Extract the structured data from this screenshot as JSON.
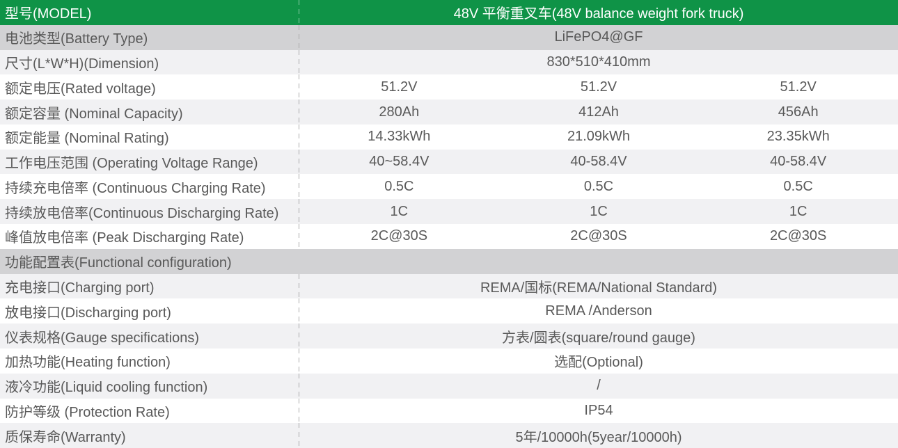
{
  "colors": {
    "header_green": "#0F9347",
    "header_text": "#FFFFFF",
    "section_gray": "#D2D2D4",
    "row_light": "#F1F1F3",
    "row_white": "#FFFFFF",
    "text": "#595959",
    "dash": "#A9A9A9",
    "dash_on_green": "rgba(255,255,255,0.55)"
  },
  "table": {
    "header": {
      "label": "型号(MODEL)",
      "value": "48V 平衡重叉车(48V balance weight fork truck)"
    },
    "rows": [
      {
        "type": "merged",
        "bg": "section",
        "label": "电池类型(Battery Type)",
        "value": "LiFePO4@GF"
      },
      {
        "type": "merged",
        "bg": "light",
        "label": "尺寸(L*W*H)(Dimension)",
        "value": "830*510*410mm"
      },
      {
        "type": "triple",
        "bg": "white",
        "label": "额定电压(Rated voltage)",
        "values": [
          "51.2V",
          "51.2V",
          "51.2V"
        ]
      },
      {
        "type": "triple",
        "bg": "light",
        "label": "额定容量 (Nominal Capacity)",
        "values": [
          "280Ah",
          "412Ah",
          "456Ah"
        ]
      },
      {
        "type": "triple",
        "bg": "white",
        "label": "额定能量 (Nominal Rating)",
        "values": [
          "14.33kWh",
          "21.09kWh",
          "23.35kWh"
        ]
      },
      {
        "type": "triple",
        "bg": "light",
        "label": "工作电压范围 (Operating Voltage Range)",
        "values": [
          "40~58.4V",
          "40-58.4V",
          "40-58.4V"
        ]
      },
      {
        "type": "triple",
        "bg": "white",
        "label": "持续充电倍率 (Continuous Charging Rate)",
        "values": [
          "0.5C",
          "0.5C",
          "0.5C"
        ]
      },
      {
        "type": "triple",
        "bg": "light",
        "label": "持续放电倍率(Continuous Discharging Rate)",
        "values": [
          "1C",
          "1C",
          "1C"
        ]
      },
      {
        "type": "triple",
        "bg": "white",
        "label": "峰值放电倍率 (Peak Discharging Rate)",
        "values": [
          "2C@30S",
          "2C@30S",
          "2C@30S"
        ]
      },
      {
        "type": "section",
        "bg": "section",
        "label": "功能配置表(Functional configuration)"
      },
      {
        "type": "merged",
        "bg": "light",
        "label": "充电接口(Charging port)",
        "value": "REMA/国标(REMA/National Standard)"
      },
      {
        "type": "merged",
        "bg": "white",
        "label": "放电接口(Discharging port)",
        "value": "REMA /Anderson"
      },
      {
        "type": "merged",
        "bg": "light",
        "label": "仪表规格(Gauge specifications)",
        "value": "方表/圆表(square/round gauge)"
      },
      {
        "type": "merged",
        "bg": "white",
        "label": "加热功能(Heating function)",
        "value": "选配(Optional)"
      },
      {
        "type": "merged",
        "bg": "light",
        "label": "液冷功能(Liquid cooling function)",
        "value": "/"
      },
      {
        "type": "merged",
        "bg": "white",
        "label": "防护等级 (Protection Rate)",
        "value": "IP54"
      },
      {
        "type": "merged",
        "bg": "light",
        "label": "质保寿命(Warranty)",
        "value": "5年/10000h(5year/10000h)"
      }
    ]
  }
}
